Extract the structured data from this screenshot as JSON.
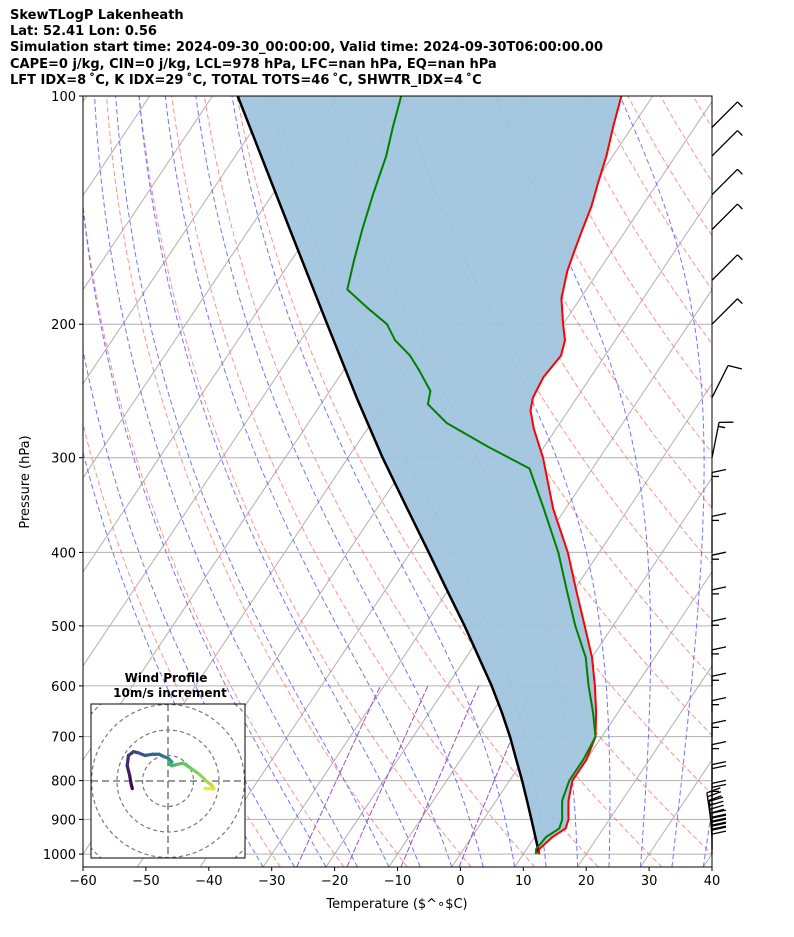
{
  "header": {
    "line1": "SkewTLogP Lakenheath",
    "line2": "Lat: 52.41   Lon: 0.56",
    "line3": "Simulation start time: 2024-09-30_00:00:00, Valid time: 2024-09-30T06:00:00.00",
    "line4": "CAPE=0 j/kg, CIN=0 j/kg, LCL=978 hPa, LFC=nan hPa, EQ=nan hPa",
    "line5": "LFT IDX=8 ˚C, K IDX=29 ˚C, TOTAL TOTS=46 ˚C, SHWTR_IDX=4 ˚C"
  },
  "chart_data": [
    {
      "type": "line",
      "subtype": "skew-T log-P",
      "xlabel": "Temperature ($^∘$C)",
      "ylabel": "Pressure (hPa)",
      "xlim": [
        -60,
        40
      ],
      "ylim": [
        1040,
        100
      ],
      "y_scale": "log",
      "x_ticks": [
        "−60",
        "−50",
        "−40",
        "−30",
        "−20",
        "−10",
        "0",
        "10",
        "20",
        "30",
        "40"
      ],
      "x_tick_values": [
        -60,
        -50,
        -40,
        -30,
        -20,
        -10,
        0,
        10,
        20,
        30,
        40
      ],
      "y_ticks": [
        "1000",
        "900",
        "800",
        "700",
        "600",
        "500",
        "400",
        "300",
        "200",
        "100"
      ],
      "y_tick_values": [
        1000,
        900,
        800,
        700,
        600,
        500,
        400,
        300,
        200,
        100
      ],
      "grid": true,
      "colors": {
        "temperature": "#ff0000",
        "dewpoint": "#008000",
        "parcel": "#000000",
        "shade": "#a0c4de",
        "dry_adiabat": "#ff6b6b",
        "moist_adiabat": "#5b5bff",
        "mixing_ratio": "#9b4fc6",
        "isotherm": "#b0b0b0"
      },
      "series": [
        {
          "id": "temperature",
          "points": [
            [
              1000,
              12.5
            ],
            [
              985,
              12.0
            ],
            [
              950,
              12.8
            ],
            [
              925,
              14.0
            ],
            [
              900,
              13.5
            ],
            [
              875,
              12.5
            ],
            [
              850,
              11.5
            ],
            [
              800,
              10.0
            ],
            [
              750,
              10.0
            ],
            [
              700,
              9.0
            ],
            [
              650,
              6.5
            ],
            [
              600,
              3.5
            ],
            [
              550,
              0.0
            ],
            [
              500,
              -4.5
            ],
            [
              450,
              -9.5
            ],
            [
              400,
              -15.0
            ],
            [
              350,
              -22.0
            ],
            [
              300,
              -29.0
            ],
            [
              275,
              -33.5
            ],
            [
              260,
              -36.0
            ],
            [
              250,
              -37.0
            ],
            [
              235,
              -37.5
            ],
            [
              220,
              -37.0
            ],
            [
              210,
              -38.0
            ],
            [
              200,
              -40.0
            ],
            [
              185,
              -43.0
            ],
            [
              170,
              -45.0
            ],
            [
              160,
              -46.0
            ],
            [
              150,
              -47.0
            ],
            [
              140,
              -48.0
            ],
            [
              130,
              -49.5
            ],
            [
              120,
              -51.0
            ],
            [
              110,
              -53.0
            ],
            [
              100,
              -55.0
            ]
          ]
        },
        {
          "id": "dewpoint",
          "points": [
            [
              1000,
              12.0
            ],
            [
              985,
              11.5
            ],
            [
              950,
              11.8
            ],
            [
              925,
              13.0
            ],
            [
              900,
              12.5
            ],
            [
              875,
              11.5
            ],
            [
              850,
              10.5
            ],
            [
              800,
              9.5
            ],
            [
              750,
              9.5
            ],
            [
              700,
              9.0
            ],
            [
              650,
              6.0
            ],
            [
              600,
              2.5
            ],
            [
              550,
              -1.0
            ],
            [
              500,
              -6.0
            ],
            [
              450,
              -11.0
            ],
            [
              400,
              -16.5
            ],
            [
              350,
              -23.5
            ],
            [
              310,
              -30.0
            ],
            [
              290,
              -39.0
            ],
            [
              270,
              -48.0
            ],
            [
              255,
              -53.0
            ],
            [
              245,
              -54.0
            ],
            [
              230,
              -58.0
            ],
            [
              220,
              -61.0
            ],
            [
              210,
              -65.0
            ],
            [
              200,
              -68.0
            ],
            [
              190,
              -73.0
            ],
            [
              180,
              -78.0
            ],
            [
              165,
              -80.0
            ],
            [
              150,
              -82.0
            ],
            [
              135,
              -84.0
            ],
            [
              120,
              -86.0
            ],
            [
              110,
              -88.0
            ],
            [
              100,
              -90.0
            ]
          ]
        },
        {
          "id": "parcel",
          "points": [
            [
              1000,
              12.5
            ],
            [
              978,
              11.5
            ],
            [
              900,
              7.6
            ],
            [
              850,
              4.9
            ],
            [
              800,
              2.0
            ],
            [
              750,
              -1.2
            ],
            [
              700,
              -4.6
            ],
            [
              650,
              -8.5
            ],
            [
              600,
              -12.9
            ],
            [
              550,
              -18.0
            ],
            [
              500,
              -23.6
            ],
            [
              450,
              -30.0
            ],
            [
              400,
              -37.1
            ],
            [
              350,
              -45.2
            ],
            [
              300,
              -54.5
            ],
            [
              250,
              -65.0
            ],
            [
              200,
              -77.5
            ],
            [
              150,
              -93.5
            ],
            [
              100,
              -116.0
            ]
          ]
        }
      ],
      "wind_barbs": [
        {
          "p": 1000,
          "u": 0.0,
          "v": -50.0
        },
        {
          "p": 985,
          "u": 0.0,
          "v": -50.0
        },
        {
          "p": 950,
          "u": 3.0,
          "v": -40.0
        },
        {
          "p": 925,
          "u": 5.0,
          "v": -35.0
        },
        {
          "p": 900,
          "u": 0.0,
          "v": -25.0
        },
        {
          "p": 850,
          "u": 0.0,
          "v": -20.0
        },
        {
          "p": 800,
          "u": 0.0,
          "v": -15.0
        },
        {
          "p": 750,
          "u": 0.0,
          "v": -15.0
        },
        {
          "p": 700,
          "u": 0.0,
          "v": -15.0
        },
        {
          "p": 650,
          "u": 0.0,
          "v": -15.0
        },
        {
          "p": 600,
          "u": 0.0,
          "v": -15.0
        },
        {
          "p": 550,
          "u": 0.0,
          "v": -15.0
        },
        {
          "p": 500,
          "u": 0.0,
          "v": -15.0
        },
        {
          "p": 450,
          "u": 0.0,
          "v": -15.0
        },
        {
          "p": 400,
          "u": 0.0,
          "v": -15.0
        },
        {
          "p": 350,
          "u": 0.0,
          "v": -15.0
        },
        {
          "p": 300,
          "u": -3.0,
          "v": -15.0
        },
        {
          "p": 250,
          "u": -5.0,
          "v": -10.0
        },
        {
          "p": 200,
          "u": -5.0,
          "v": -5.0
        },
        {
          "p": 175,
          "u": -5.0,
          "v": -5.0
        },
        {
          "p": 150,
          "u": -5.0,
          "v": -5.0
        },
        {
          "p": 135,
          "u": -5.0,
          "v": -5.0
        },
        {
          "p": 120,
          "u": -5.0,
          "v": -5.0
        },
        {
          "p": 110,
          "u": -5.0,
          "v": -5.0
        }
      ]
    },
    {
      "type": "scatter",
      "subtype": "hodograph",
      "title": "Wind Profile",
      "subtitle": "10m/s increment",
      "rings_m_s": [
        10,
        20,
        30,
        40
      ],
      "colormap": "viridis",
      "points": [
        [
          -14.0,
          -3.0
        ],
        [
          -14.5,
          -1.0
        ],
        [
          -15.0,
          2.0
        ],
        [
          -16.0,
          6.0
        ],
        [
          -15.5,
          10.0
        ],
        [
          -13.5,
          11.5
        ],
        [
          -11.5,
          11.0
        ],
        [
          -9.0,
          10.0
        ],
        [
          -6.0,
          10.5
        ],
        [
          -3.5,
          10.5
        ],
        [
          -1.5,
          9.5
        ],
        [
          0.0,
          9.0
        ],
        [
          0.5,
          8.5
        ],
        [
          1.5,
          7.5
        ],
        [
          1.0,
          7.0
        ],
        [
          0.5,
          6.5
        ],
        [
          1.5,
          6.0
        ],
        [
          3.5,
          6.5
        ],
        [
          6.0,
          7.0
        ],
        [
          9.0,
          5.0
        ],
        [
          12.5,
          2.5
        ],
        [
          15.0,
          0.0
        ],
        [
          17.0,
          -1.5
        ],
        [
          18.0,
          -3.0
        ],
        [
          16.0,
          -3.0
        ],
        [
          14.5,
          -3.0
        ]
      ]
    }
  ]
}
